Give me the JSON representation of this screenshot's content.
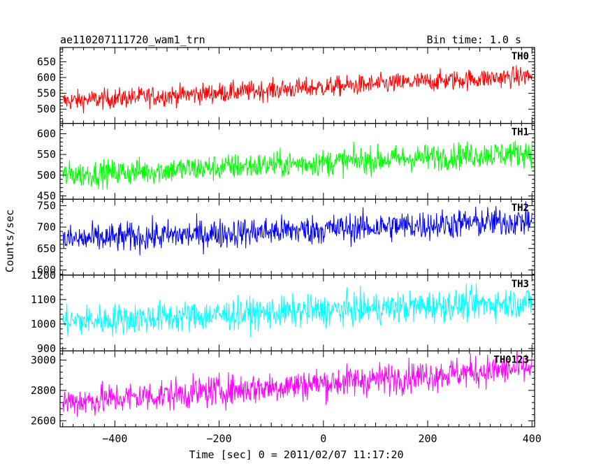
{
  "chart_data": {
    "type": "line",
    "title": "ae110207111720_wam1_trn",
    "subtitle": "Bin time: 1.0 s",
    "xlabel": "Time [sec] 0 = 2011/02/07 11:17:20",
    "ylabel": "Counts/sec",
    "xlim": [
      -505,
      405
    ],
    "x_ticks": [
      -400,
      -200,
      0,
      200,
      400
    ],
    "x_tick_labels": [
      "−400",
      "−200",
      "0",
      "200",
      "400"
    ],
    "grid": false,
    "x_range_data": [
      -500,
      400
    ],
    "panels": [
      {
        "label": "TH0",
        "color": "#ff0000",
        "ylim": [
          455,
          695
        ],
        "ticks": [
          500,
          550,
          600,
          650
        ],
        "trend_start": 525,
        "trend_end": 605,
        "noise": 55
      },
      {
        "label": "TH1",
        "color": "#00ff00",
        "ylim": [
          442,
          625
        ],
        "ticks": [
          450,
          500,
          550,
          600
        ],
        "trend_start": 500,
        "trend_end": 555,
        "noise": 55
      },
      {
        "label": "TH2",
        "color": "#0000ff",
        "ylim": [
          588,
          765
        ],
        "ticks": [
          600,
          650,
          700,
          750
        ],
        "trend_start": 670,
        "trend_end": 715,
        "noise": 60
      },
      {
        "label": "TH3",
        "color": "#00ffff",
        "ylim": [
          890,
          1200
        ],
        "ticks": [
          900,
          1000,
          1100,
          1200
        ],
        "trend_start": 1010,
        "trend_end": 1090,
        "noise": 110
      },
      {
        "label": "TH0123",
        "color": "#ff00ff",
        "ylim": [
          2560,
          3060
        ],
        "ticks": [
          2600,
          2800,
          3000
        ],
        "trend_start": 2720,
        "trend_end": 2950,
        "noise": 180
      }
    ]
  }
}
